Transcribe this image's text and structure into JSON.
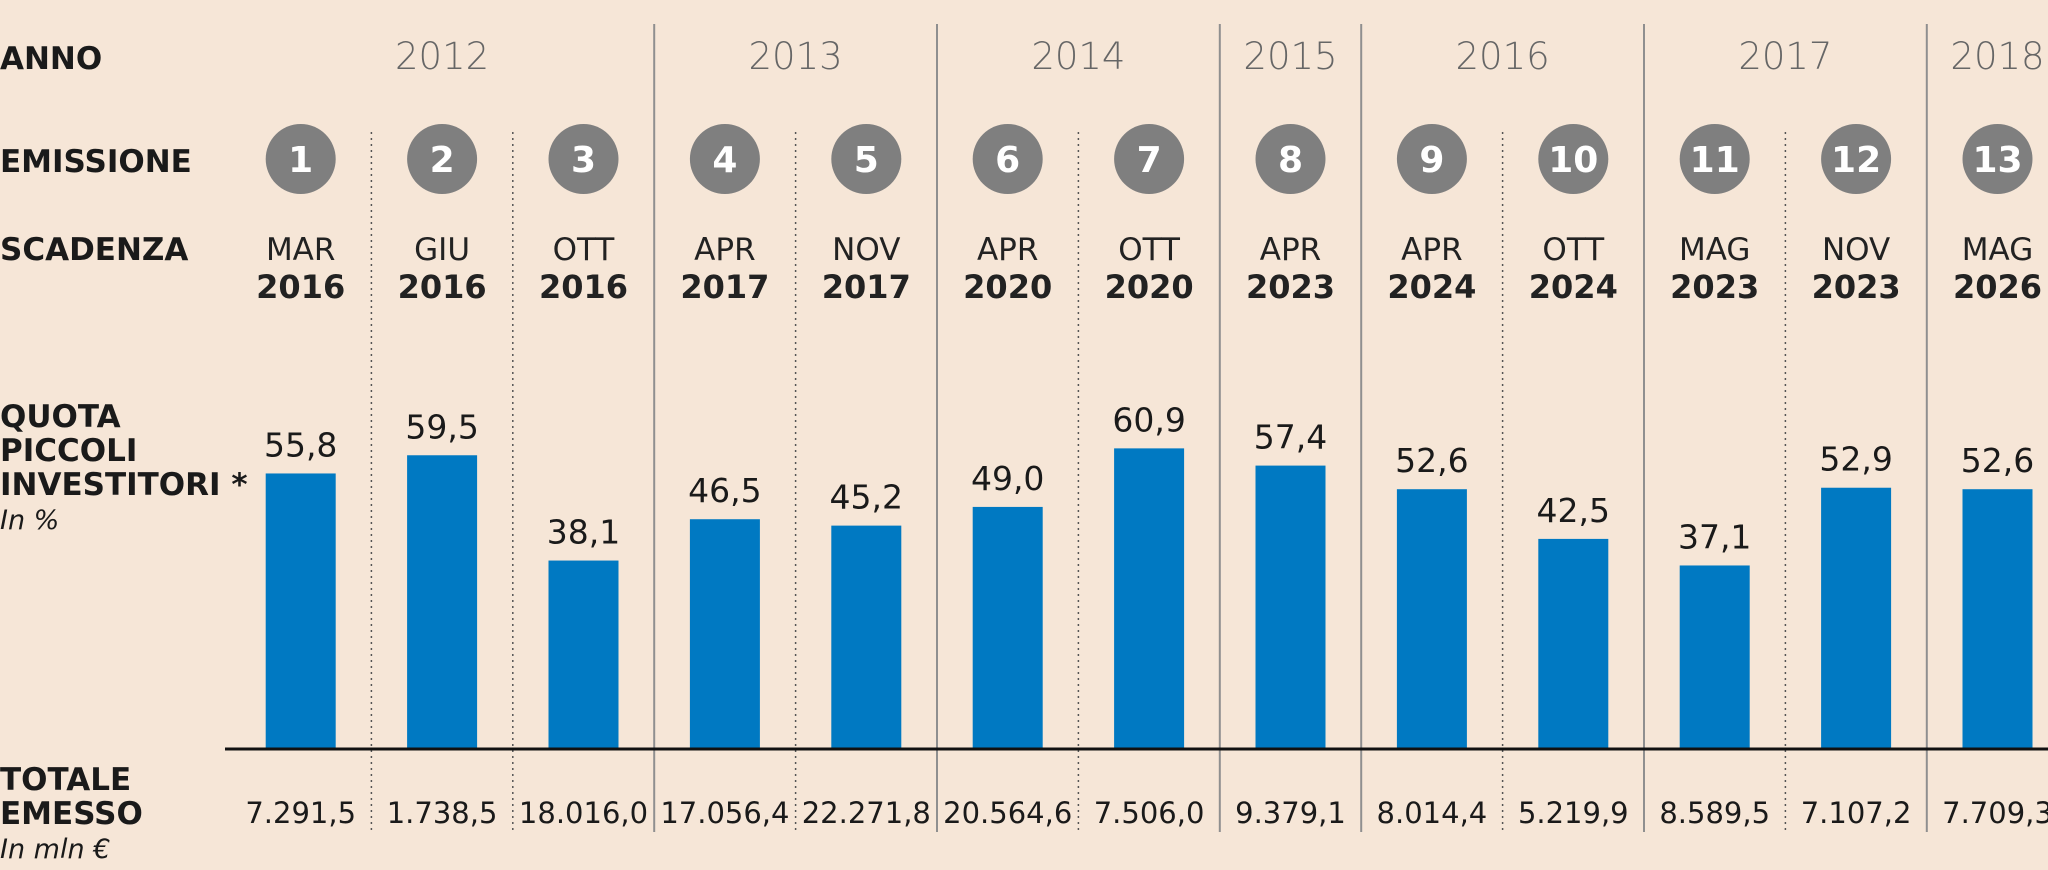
{
  "row_labels": {
    "anno": "ANNO",
    "emissione": "EMISSIONE",
    "scadenza": "SCADENZA",
    "quota": [
      "QUOTA",
      "PICCOLI",
      "INVESTITORI *"
    ],
    "quota_unit": "In %",
    "totale": [
      "TOTALE",
      "EMESSO"
    ],
    "totale_unit": "In mln €"
  },
  "years": [
    {
      "label": "2012",
      "issues": [
        1,
        2,
        3
      ]
    },
    {
      "label": "2013",
      "issues": [
        4,
        5
      ]
    },
    {
      "label": "2014",
      "issues": [
        6,
        7
      ]
    },
    {
      "label": "2015",
      "issues": [
        8
      ]
    },
    {
      "label": "2016",
      "issues": [
        9,
        10
      ]
    },
    {
      "label": "2017",
      "issues": [
        11,
        12
      ]
    },
    {
      "label": "2018",
      "issues": [
        13
      ]
    }
  ],
  "chart_data": {
    "type": "bar",
    "categories": [
      "1",
      "2",
      "3",
      "4",
      "5",
      "6",
      "7",
      "8",
      "9",
      "10",
      "11",
      "12",
      "13"
    ],
    "series": [
      {
        "values": [
          55.8,
          59.5,
          38.1,
          46.5,
          45.2,
          49.0,
          60.9,
          57.4,
          52.6,
          42.5,
          37.1,
          52.9,
          52.6
        ],
        "labels": [
          "55,8",
          "59,5",
          "38,1",
          "46,5",
          "45,2",
          "49,0",
          "60,9",
          "57,4",
          "52,6",
          "42,5",
          "37,1",
          "52,9",
          "52,6"
        ]
      }
    ],
    "ylim": [
      0,
      100
    ],
    "scadenza": [
      {
        "month": "MAR",
        "year": "2016"
      },
      {
        "month": "GIU",
        "year": "2016"
      },
      {
        "month": "OTT",
        "year": "2016"
      },
      {
        "month": "APR",
        "year": "2017"
      },
      {
        "month": "NOV",
        "year": "2017"
      },
      {
        "month": "APR",
        "year": "2020"
      },
      {
        "month": "OTT",
        "year": "2020"
      },
      {
        "month": "APR",
        "year": "2023"
      },
      {
        "month": "APR",
        "year": "2024"
      },
      {
        "month": "OTT",
        "year": "2024"
      },
      {
        "month": "MAG",
        "year": "2023"
      },
      {
        "month": "NOV",
        "year": "2023"
      },
      {
        "month": "MAG",
        "year": "2026"
      }
    ],
    "totale_emesso": [
      "7.291,5",
      "1.738,5",
      "18.016,0",
      "17.056,4",
      "22.271,8",
      "20.564,6",
      "7.506,0",
      "9.379,1",
      "8.014,4",
      "5.219,9",
      "8.589,5",
      "7.107,2",
      "7.709,3"
    ],
    "colors": {
      "bar": "#0079c2",
      "badge": "#7f7f7f",
      "background": "#f6e6d7"
    }
  }
}
